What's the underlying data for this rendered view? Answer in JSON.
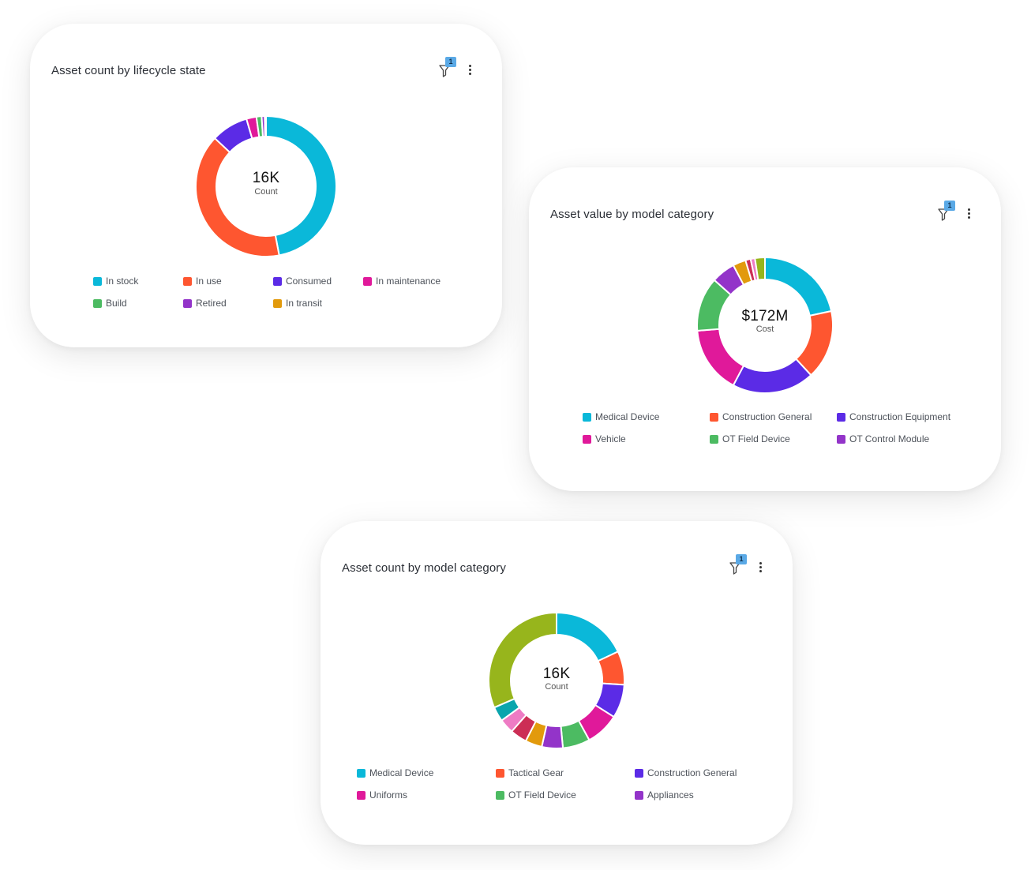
{
  "chart_data": [
    {
      "type": "pie",
      "title": "Asset count by lifecycle state",
      "filter_badge": "1",
      "center_value": "16K",
      "center_label": "Count",
      "slices": [
        {
          "label": "In stock",
          "value": 47,
          "color": "#0ab8d9"
        },
        {
          "label": "In use",
          "value": 40,
          "color": "#fe5630"
        },
        {
          "label": "Consumed",
          "value": 8.5,
          "color": "#5b2be6"
        },
        {
          "label": "In maintenance",
          "value": 2.3,
          "color": "#e0199a"
        },
        {
          "label": "Build",
          "value": 1.2,
          "color": "#4cbb62"
        },
        {
          "label": "Retired",
          "value": 0.7,
          "color": "#9334c9"
        },
        {
          "label": "In transit",
          "value": 0.3,
          "color": "#e29a0c"
        }
      ],
      "legend": [
        "In stock",
        "In use",
        "Consumed",
        "In maintenance",
        "Build",
        "Retired",
        "In transit"
      ]
    },
    {
      "type": "pie",
      "title": "Asset value by model category",
      "filter_badge": "1",
      "center_value": "$172M",
      "center_label": "Cost",
      "slices": [
        {
          "label": "Medical Device",
          "value": 21,
          "color": "#0ab8d9"
        },
        {
          "label": "Construction General",
          "value": 16,
          "color": "#fe5630"
        },
        {
          "label": "Construction Equipment",
          "value": 19,
          "color": "#5b2be6"
        },
        {
          "label": "Vehicle",
          "value": 15.5,
          "color": "#e0199a"
        },
        {
          "label": "OT Field Device",
          "value": 12.5,
          "color": "#4cbb62"
        },
        {
          "label": "OT Control Module",
          "value": 5.5,
          "color": "#9334c9"
        },
        {
          "label": "",
          "value": 3,
          "color": "#e29a0c"
        },
        {
          "label": "",
          "value": 1.2,
          "color": "#cc2e55"
        },
        {
          "label": "",
          "value": 1,
          "color": "#ee7bc4"
        },
        {
          "label": "",
          "value": 2.3,
          "color": "#97b51c"
        }
      ],
      "legend": [
        "Medical Device",
        "Construction General",
        "Construction Equipment",
        "Vehicle",
        "OT Field Device",
        "OT Control Module"
      ]
    },
    {
      "type": "pie",
      "title": "Asset count by model category",
      "filter_badge": "1",
      "center_value": "16K",
      "center_label": "Count",
      "slices": [
        {
          "label": "Medical Device",
          "value": 18,
          "color": "#0ab8d9"
        },
        {
          "label": "Tactical Gear",
          "value": 8,
          "color": "#fe5630"
        },
        {
          "label": "Construction General",
          "value": 8,
          "color": "#5b2be6"
        },
        {
          "label": "Uniforms",
          "value": 8,
          "color": "#e0199a"
        },
        {
          "label": "OT Field Device",
          "value": 6.5,
          "color": "#4cbb62"
        },
        {
          "label": "Appliances",
          "value": 5,
          "color": "#9334c9"
        },
        {
          "label": "",
          "value": 4,
          "color": "#e29a0c"
        },
        {
          "label": "",
          "value": 4,
          "color": "#cc2e55"
        },
        {
          "label": "",
          "value": 3.5,
          "color": "#ee7bc4"
        },
        {
          "label": "",
          "value": 3.5,
          "color": "#0aa5ad"
        },
        {
          "label": "",
          "value": 31.5,
          "color": "#97b51c"
        }
      ],
      "legend": [
        "Medical Device",
        "Tactical Gear",
        "Construction General",
        "Uniforms",
        "OT Field Device",
        "Appliances"
      ]
    }
  ]
}
